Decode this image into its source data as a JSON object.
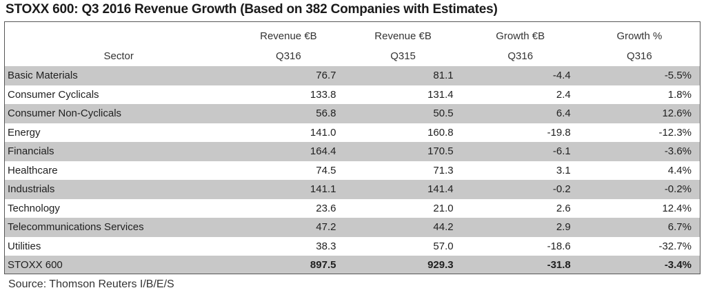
{
  "chart_data": {
    "type": "table",
    "title": "STOXX 600: Q3 2016 Revenue Growth (Based on 382 Companies with Estimates)",
    "columns": [
      {
        "label": "Sector",
        "sub": ""
      },
      {
        "label": "Revenue €B",
        "sub": "Q316"
      },
      {
        "label": "Revenue €B",
        "sub": "Q315"
      },
      {
        "label": "Growth €B",
        "sub": "Q316"
      },
      {
        "label": "Growth %",
        "sub": "Q316"
      }
    ],
    "rows": [
      {
        "sector": "Basic Materials",
        "rev_q316": "76.7",
        "rev_q315": "81.1",
        "growth_eur": "-4.4",
        "growth_pct": "-5.5%"
      },
      {
        "sector": "Consumer Cyclicals",
        "rev_q316": "133.8",
        "rev_q315": "131.4",
        "growth_eur": "2.4",
        "growth_pct": "1.8%"
      },
      {
        "sector": "Consumer Non-Cyclicals",
        "rev_q316": "56.8",
        "rev_q315": "50.5",
        "growth_eur": "6.4",
        "growth_pct": "12.6%"
      },
      {
        "sector": "Energy",
        "rev_q316": "141.0",
        "rev_q315": "160.8",
        "growth_eur": "-19.8",
        "growth_pct": "-12.3%"
      },
      {
        "sector": "Financials",
        "rev_q316": "164.4",
        "rev_q315": "170.5",
        "growth_eur": "-6.1",
        "growth_pct": "-3.6%"
      },
      {
        "sector": "Healthcare",
        "rev_q316": "74.5",
        "rev_q315": "71.3",
        "growth_eur": "3.1",
        "growth_pct": "4.4%"
      },
      {
        "sector": "Industrials",
        "rev_q316": "141.1",
        "rev_q315": "141.4",
        "growth_eur": "-0.2",
        "growth_pct": "-0.2%"
      },
      {
        "sector": "Technology",
        "rev_q316": "23.6",
        "rev_q315": "21.0",
        "growth_eur": "2.6",
        "growth_pct": "12.4%"
      },
      {
        "sector": "Telecommunications Services",
        "rev_q316": "47.2",
        "rev_q315": "44.2",
        "growth_eur": "2.9",
        "growth_pct": "6.7%"
      },
      {
        "sector": "Utilities",
        "rev_q316": "38.3",
        "rev_q315": "57.0",
        "growth_eur": "-18.6",
        "growth_pct": "-32.7%"
      }
    ],
    "total": {
      "sector": "STOXX 600",
      "rev_q316": "897.5",
      "rev_q315": "929.3",
      "growth_eur": "-31.8",
      "growth_pct": "-3.4%"
    },
    "source": "Source: Thomson Reuters I/B/E/S",
    "row_shade_color": "#c8c8c8"
  }
}
